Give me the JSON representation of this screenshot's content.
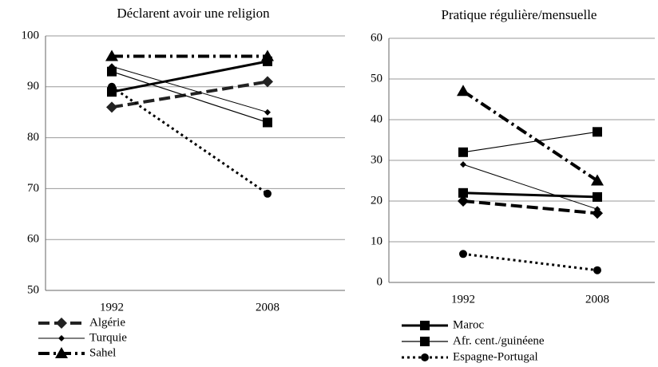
{
  "chart_data": [
    {
      "type": "line",
      "title": "Déclarent avoir une religion",
      "categories": [
        "1992",
        "2008"
      ],
      "ylim": [
        50,
        100
      ],
      "yticks": [
        50,
        60,
        70,
        80,
        90,
        100
      ],
      "grid": true,
      "series": [
        {
          "name": "Algérie",
          "color": "#222222",
          "dash": "14,6",
          "width": 4,
          "marker": "diamond",
          "values": [
            86,
            91
          ]
        },
        {
          "name": "Turquie",
          "color": "#000000",
          "dash": "none",
          "width": 1,
          "marker": "small-diamond",
          "values": [
            94,
            85
          ]
        },
        {
          "name": "Sahel",
          "color": "#000000",
          "dash": "14,5,3,5",
          "width": 4,
          "marker": "triangle",
          "values": [
            96,
            96
          ]
        },
        {
          "color": "#000000",
          "dash": "none",
          "width": 3,
          "marker": "square",
          "values": [
            89,
            95
          ]
        },
        {
          "color": "#000000",
          "dash": "none",
          "width": 1.2,
          "marker": "square",
          "values": [
            93,
            83
          ]
        },
        {
          "color": "#000000",
          "dash": "3,4",
          "width": 3,
          "marker": "circle",
          "values": [
            90,
            69
          ]
        }
      ]
    },
    {
      "type": "line",
      "title": "Pratique régulière/mensuelle",
      "categories": [
        "1992",
        "2008"
      ],
      "ylim": [
        0,
        60
      ],
      "yticks": [
        0,
        10,
        20,
        30,
        40,
        50,
        60
      ],
      "grid": true,
      "series": [
        {
          "color": "#000000",
          "dash": "14,6",
          "width": 4,
          "marker": "diamond",
          "values": [
            20,
            17
          ]
        },
        {
          "color": "#000000",
          "dash": "none",
          "width": 1,
          "marker": "small-diamond",
          "values": [
            29,
            18
          ]
        },
        {
          "color": "#000000",
          "dash": "14,5,3,5",
          "width": 4,
          "marker": "triangle",
          "values": [
            47,
            25
          ]
        },
        {
          "name": "Maroc",
          "color": "#000000",
          "dash": "none",
          "width": 3,
          "marker": "square",
          "values": [
            22,
            21
          ]
        },
        {
          "name": "Afr. cent./guinéene",
          "color": "#000000",
          "dash": "none",
          "width": 1.2,
          "marker": "square",
          "values": [
            32,
            37
          ]
        },
        {
          "name": "Espagne-Portugal",
          "color": "#000000",
          "dash": "3,4",
          "width": 3,
          "marker": "circle",
          "values": [
            7,
            3
          ]
        }
      ]
    }
  ]
}
